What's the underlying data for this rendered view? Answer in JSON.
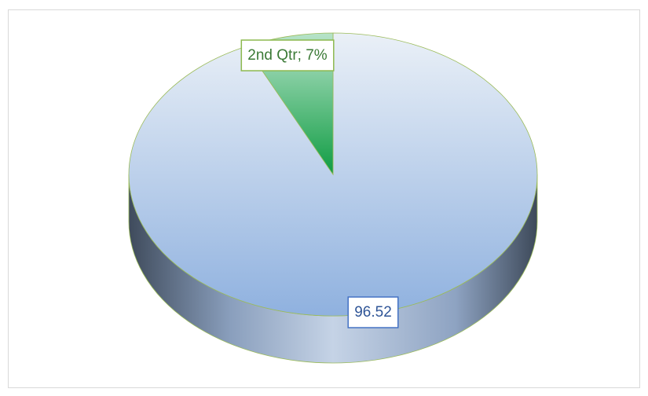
{
  "chart_data": {
    "type": "pie",
    "pie_3d": true,
    "categories": [
      null,
      "2nd Qtr"
    ],
    "values": [
      96.52,
      7.3
    ],
    "value_labels": [
      "96.52",
      "2nd Qtr; 7%"
    ],
    "colors": [
      "#a9c3e6",
      "#2eb060"
    ]
  }
}
